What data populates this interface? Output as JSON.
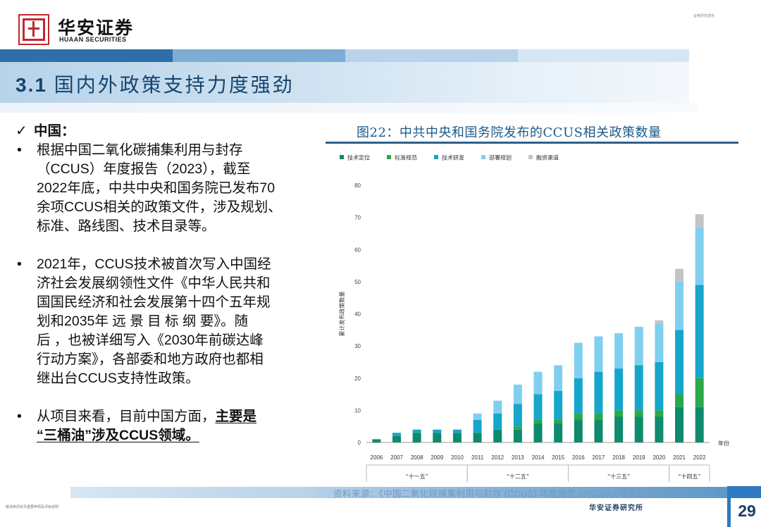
{
  "header": {
    "logo_cn": "华安证券",
    "logo_en": "HUAAN SECURITIES",
    "top_right_tag": "证券研究报告"
  },
  "section": {
    "number": "3.1",
    "title": "国内外政策支持力度强劲"
  },
  "left": {
    "head": "中国：",
    "bullets": [
      [
        "根据中国二氧化碳捕集利用与封存",
        "（CCUS）年度报告（2023），截至",
        "2022年底，中共中央和国务院已发布70",
        "余项CCUS相关的政策文件，涉及规划、",
        "标准、路线图、技术目录等。"
      ],
      [
        "2021年，CCUS技术被首次写入中国经",
        "济社会发展纲领性文件《中华人民共和",
        "国国民经济和社会发展第十四个五年规",
        "划和2035年 远 景 目 标 纲 要》。随",
        "后 ，也被详细写入《2030年前碳达峰",
        "行动方案》，各部委和地方政府也都相",
        "继出台CCUS支持性政策。"
      ]
    ],
    "last_bullet_line1_prefix": "从项目来看，目前中国方面，",
    "last_bullet_line1_emph": "主要是",
    "last_bullet_line2_emph": "“三桶油”涉及CCUS领域。"
  },
  "figure": {
    "title": "图22：中共中央和国务院发布的CCUS相关政策数量"
  },
  "chart_data": {
    "type": "bar",
    "stacked": true,
    "ylabel": "累计发布政策数量",
    "xlabel": "年份",
    "ylim": [
      0,
      80
    ],
    "yticks": [
      0,
      10,
      20,
      30,
      40,
      50,
      60,
      70,
      80
    ],
    "grid": false,
    "legend_position": "top-left",
    "categories": [
      "2006",
      "2007",
      "2008",
      "2009",
      "2010",
      "2011",
      "2012",
      "2013",
      "2014",
      "2015",
      "2016",
      "2017",
      "2018",
      "2019",
      "2020",
      "2021",
      "2022"
    ],
    "series": [
      {
        "name": "技术定位",
        "color": "#0e8a6c",
        "values": [
          1,
          2,
          3,
          3,
          3,
          3,
          4,
          4,
          6,
          6,
          7,
          7,
          8,
          8,
          8,
          11,
          11
        ]
      },
      {
        "name": "标准规范",
        "color": "#2aa84a",
        "values": [
          0,
          0,
          0,
          0,
          0,
          0,
          0,
          1,
          1,
          1,
          2,
          2,
          2,
          2,
          2,
          4,
          9
        ]
      },
      {
        "name": "技术研发",
        "color": "#16a6cc",
        "values": [
          0,
          1,
          1,
          1,
          1,
          4,
          5,
          7,
          8,
          9,
          11,
          13,
          13,
          14,
          15,
          20,
          29
        ]
      },
      {
        "name": "部署规划",
        "color": "#7fd0ee",
        "values": [
          0,
          0,
          0,
          0,
          0,
          2,
          4,
          6,
          7,
          8,
          11,
          11,
          11,
          12,
          12,
          15,
          18
        ]
      },
      {
        "name": "融资渠道",
        "color": "#c4c4c4",
        "values": [
          0,
          0,
          0,
          0,
          0,
          0,
          0,
          0,
          0,
          0,
          0,
          0,
          0,
          0,
          1,
          4,
          4
        ]
      }
    ],
    "periods": [
      {
        "label": "“十一五”",
        "from": "2006",
        "to": "2010"
      },
      {
        "label": "“十二五”",
        "from": "2011",
        "to": "2015"
      },
      {
        "label": "“十三五”",
        "from": "2016",
        "to": "2020"
      },
      {
        "label": "“十四五”",
        "from": "2021",
        "to": "2022"
      }
    ]
  },
  "footer": {
    "source": "资料来源：《中国二氧化碳捕集利用与封存 (CCUS) 年度报告 (2023)》，华安证券研究所",
    "disclaimer": "敬请参阅末页重要声明及评级说明",
    "institute": "华安证券研究所",
    "page_number": "29"
  }
}
